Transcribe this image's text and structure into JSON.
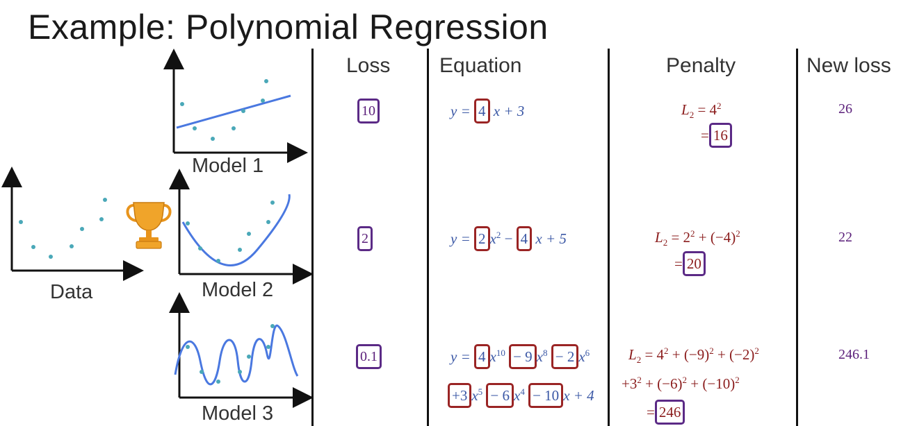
{
  "title": "Example: Polynomial Regression",
  "columns": {
    "loss": "Loss",
    "equation": "Equation",
    "penalty": "Penalty",
    "new_loss": "New loss"
  },
  "plots": {
    "data_label": "Data",
    "model1_label": "Model 1",
    "model2_label": "Model 2",
    "model3_label": "Model 3",
    "winner_icon": "trophy-icon"
  },
  "colors": {
    "points": "#4aa8b8",
    "fit": "#4a78e0",
    "box_loss": "#5b2a86",
    "box_coef": "#9a2424",
    "equation": "#3a57a5",
    "penalty": "#8b1c1c"
  },
  "rows": [
    {
      "loss": "10",
      "eq": {
        "prefix": "y =",
        "c1": "4",
        "t1": "x + 3"
      },
      "penalty": {
        "lhs": "L",
        "sub": "2",
        "expr": "= 4",
        "exp": "2",
        "eq": "=",
        "value": "16"
      },
      "new_loss": "26"
    },
    {
      "loss": "2",
      "eq": {
        "prefix": "y =",
        "c1": "2",
        "t1": "x",
        "t1sup": "2",
        "c2": "4",
        "t2": "x + 5"
      },
      "penalty": {
        "lhs": "L",
        "sub": "2",
        "p1": "= 2",
        "e1": "2",
        "p2": "+ (−4)",
        "e2": "2",
        "eq": "=",
        "value": "20"
      },
      "new_loss": "22"
    },
    {
      "loss": "0.1",
      "eq": {
        "prefix": "y =",
        "c1": "4",
        "e1": "10",
        "c2": "− 9",
        "e2": "8",
        "c3": "− 2",
        "e3": "6",
        "c4": "+3",
        "e4": "5",
        "c5": "− 6",
        "e5": "4",
        "c6": "− 10",
        "tail": "x + 4"
      },
      "penalty": {
        "lhs": "L",
        "sub": "2",
        "line1": "= 4",
        "l1e1": "2",
        "l1b": "+ (−9)",
        "l1e2": "2",
        "l1c": "+ (−2)",
        "l1e3": "2",
        "line2": "+3",
        "l2e1": "2",
        "l2b": "+ (−6)",
        "l2e2": "2",
        "l2c": "+ (−10)",
        "l2e3": "2",
        "eq": "=",
        "value": "246"
      },
      "new_loss": "246.1"
    }
  ]
}
